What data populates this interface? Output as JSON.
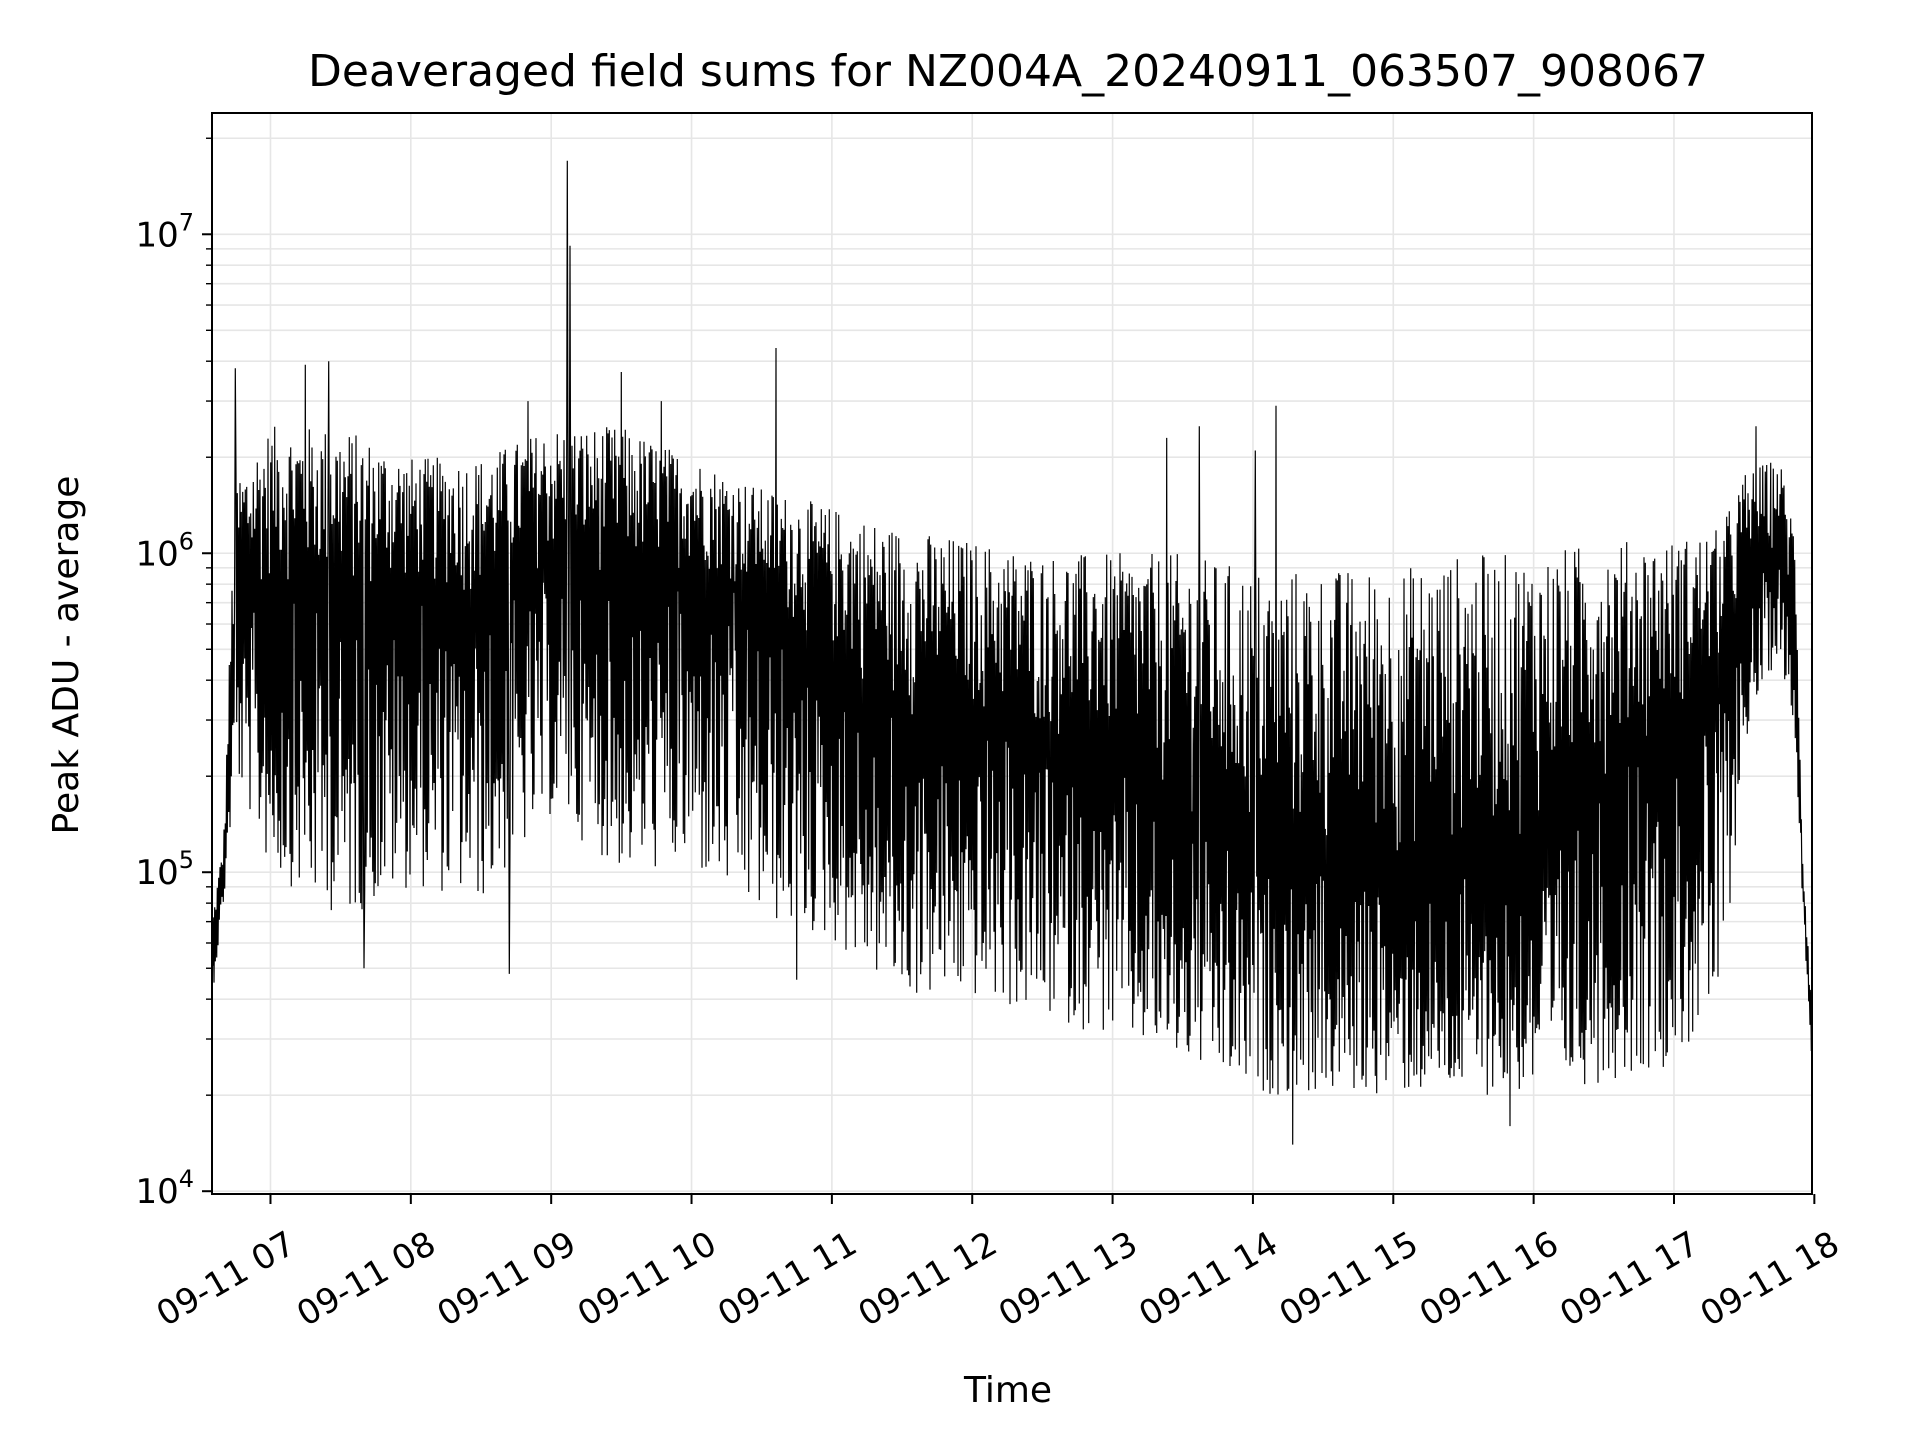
{
  "chart_data": {
    "type": "line",
    "title": "Deaveraged field sums for NZ004A_20240911_063507_908067",
    "xlabel": "Time",
    "ylabel": "Peak ADU - average",
    "yscale": "log",
    "ylim": [
      9800,
      24000000
    ],
    "xlim": [
      "2024-09-11 06:35",
      "2024-09-11 17:59"
    ],
    "grid": true,
    "line_color": "#000000",
    "grid_color": "#e6e6e6",
    "x_ticks": [
      {
        "label": "09-11 07",
        "t": "2024-09-11 07:00"
      },
      {
        "label": "09-11 08",
        "t": "2024-09-11 08:00"
      },
      {
        "label": "09-11 09",
        "t": "2024-09-11 09:00"
      },
      {
        "label": "09-11 10",
        "t": "2024-09-11 10:00"
      },
      {
        "label": "09-11 11",
        "t": "2024-09-11 11:00"
      },
      {
        "label": "09-11 12",
        "t": "2024-09-11 12:00"
      },
      {
        "label": "09-11 13",
        "t": "2024-09-11 13:00"
      },
      {
        "label": "09-11 14",
        "t": "2024-09-11 14:00"
      },
      {
        "label": "09-11 15",
        "t": "2024-09-11 15:00"
      },
      {
        "label": "09-11 16",
        "t": "2024-09-11 16:00"
      },
      {
        "label": "09-11 17",
        "t": "2024-09-11 17:00"
      },
      {
        "label": "09-11 18",
        "t": "2024-09-11 18:00"
      }
    ],
    "y_ticks": [
      {
        "base": "10",
        "exp": "4",
        "value": 10000
      },
      {
        "base": "10",
        "exp": "5",
        "value": 100000
      },
      {
        "base": "10",
        "exp": "6",
        "value": 1000000
      },
      {
        "base": "10",
        "exp": "7",
        "value": 10000000
      }
    ],
    "envelope": {
      "t": [
        "06:35",
        "06:40",
        "06:45",
        "07:00",
        "07:30",
        "08:00",
        "08:30",
        "09:00",
        "09:30",
        "10:00",
        "10:30",
        "11:00",
        "11:30",
        "12:00",
        "12:30",
        "13:00",
        "13:30",
        "14:00",
        "14:30",
        "15:00",
        "15:30",
        "16:00",
        "16:30",
        "17:00",
        "17:20",
        "17:30",
        "17:45",
        "17:52",
        "17:55",
        "17:59"
      ],
      "median": [
        60000,
        100000,
        600000,
        800000,
        700000,
        750000,
        700000,
        900000,
        800000,
        900000,
        700000,
        450000,
        300000,
        300000,
        250000,
        220000,
        150000,
        110000,
        100000,
        100000,
        110000,
        130000,
        200000,
        300000,
        400000,
        700000,
        1100000,
        500000,
        100000,
        30000
      ],
      "low": [
        40000,
        80000,
        200000,
        100000,
        70000,
        90000,
        80000,
        150000,
        100000,
        100000,
        70000,
        60000,
        40000,
        40000,
        35000,
        30000,
        25000,
        20000,
        20000,
        20000,
        20000,
        20000,
        22000,
        25000,
        35000,
        250000,
        500000,
        250000,
        80000,
        25000
      ],
      "high": [
        70000,
        130000,
        1800000,
        2500000,
        2500000,
        2000000,
        2000000,
        2500000,
        2500000,
        2000000,
        1600000,
        1400000,
        1200000,
        1100000,
        1000000,
        1000000,
        1000000,
        900000,
        900000,
        900000,
        1000000,
        1000000,
        1100000,
        1100000,
        1200000,
        1800000,
        2000000,
        1200000,
        110000,
        40000
      ]
    },
    "spikes": [
      {
        "t": "06:45",
        "value": 3800000
      },
      {
        "t": "07:15",
        "value": 3900000
      },
      {
        "t": "07:25",
        "value": 4000000
      },
      {
        "t": "08:50",
        "value": 3000000
      },
      {
        "t": "09:07",
        "value": 17000000
      },
      {
        "t": "09:08",
        "value": 9200000
      },
      {
        "t": "09:30",
        "value": 3700000
      },
      {
        "t": "09:47",
        "value": 3000000
      },
      {
        "t": "10:36",
        "value": 4400000
      },
      {
        "t": "13:23",
        "value": 2300000
      },
      {
        "t": "13:37",
        "value": 2500000
      },
      {
        "t": "14:01",
        "value": 2100000
      },
      {
        "t": "14:10",
        "value": 2900000
      },
      {
        "t": "17:35",
        "value": 2500000
      },
      {
        "t": "07:40",
        "value": 50000
      },
      {
        "t": "08:42",
        "value": 48000
      },
      {
        "t": "10:45",
        "value": 46000
      },
      {
        "t": "14:17",
        "value": 14000
      },
      {
        "t": "15:50",
        "value": 16000
      }
    ]
  }
}
